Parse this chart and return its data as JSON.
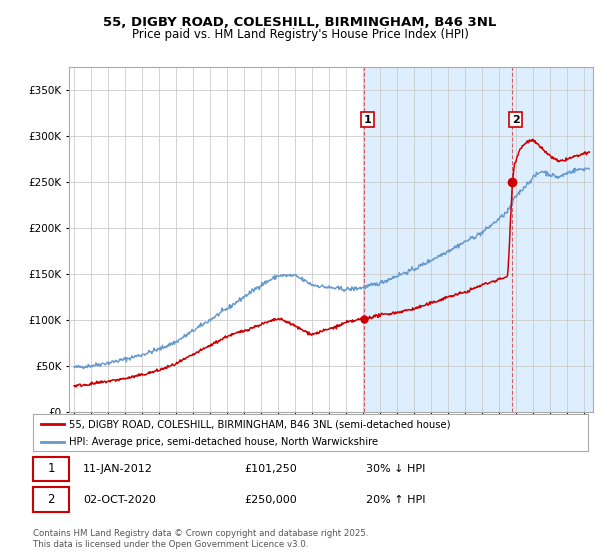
{
  "title1": "55, DIGBY ROAD, COLESHILL, BIRMINGHAM, B46 3NL",
  "title2": "Price paid vs. HM Land Registry's House Price Index (HPI)",
  "ylim": [
    0,
    375000
  ],
  "yticks": [
    0,
    50000,
    100000,
    150000,
    200000,
    250000,
    300000,
    350000
  ],
  "xlim_start": 1994.7,
  "xlim_end": 2025.5,
  "legend_line1": "55, DIGBY ROAD, COLESHILL, BIRMINGHAM, B46 3NL (semi-detached house)",
  "legend_line2": "HPI: Average price, semi-detached house, North Warwickshire",
  "sale1_date": "11-JAN-2012",
  "sale1_price": "£101,250",
  "sale1_hpi": "30% ↓ HPI",
  "sale2_date": "02-OCT-2020",
  "sale2_price": "£250,000",
  "sale2_hpi": "20% ↑ HPI",
  "footer": "Contains HM Land Registry data © Crown copyright and database right 2025.\nThis data is licensed under the Open Government Licence v3.0.",
  "red_color": "#cc0000",
  "blue_color": "#6699cc",
  "shaded_color": "#ddeeff",
  "grid_color": "#cccccc",
  "sale1_x": 2012.04,
  "sale2_x": 2020.77,
  "sale1_y": 101250,
  "sale2_y": 250000,
  "bg_shade_start": 2012.04,
  "bg_shade_end": 2025.5
}
